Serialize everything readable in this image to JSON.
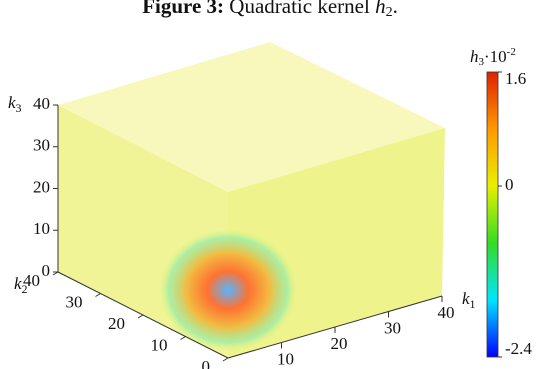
{
  "caption": {
    "label": "Figure 3:",
    "text": "Quadratic kernel",
    "symbol": "h",
    "subscript": "2",
    "end": "."
  },
  "chart_data": {
    "type": "volume",
    "x_label": "k",
    "x_label_sub": "1",
    "xlim": [
      0,
      40
    ],
    "xticks": [
      10,
      20,
      30,
      40
    ],
    "y_label": "k",
    "y_label_sub": "2",
    "ylim": [
      0,
      40
    ],
    "yticks": [
      0,
      10,
      20,
      30,
      40
    ],
    "z_label": "k",
    "z_label_sub": "3",
    "zlim": [
      0,
      40
    ],
    "zticks": [
      0,
      10,
      20,
      30,
      40
    ],
    "colorbar": {
      "label": "h",
      "label_sub": "3",
      "label_mult": "·10",
      "label_exp": "-2",
      "lim": [
        -2.4,
        1.6
      ],
      "ticks": [
        1.6,
        0,
        -2.4
      ],
      "colors": [
        "#0000ff",
        "#00e5ff",
        "#33dd22",
        "#e8f000",
        "#ff9900",
        "#e02000"
      ]
    }
  }
}
